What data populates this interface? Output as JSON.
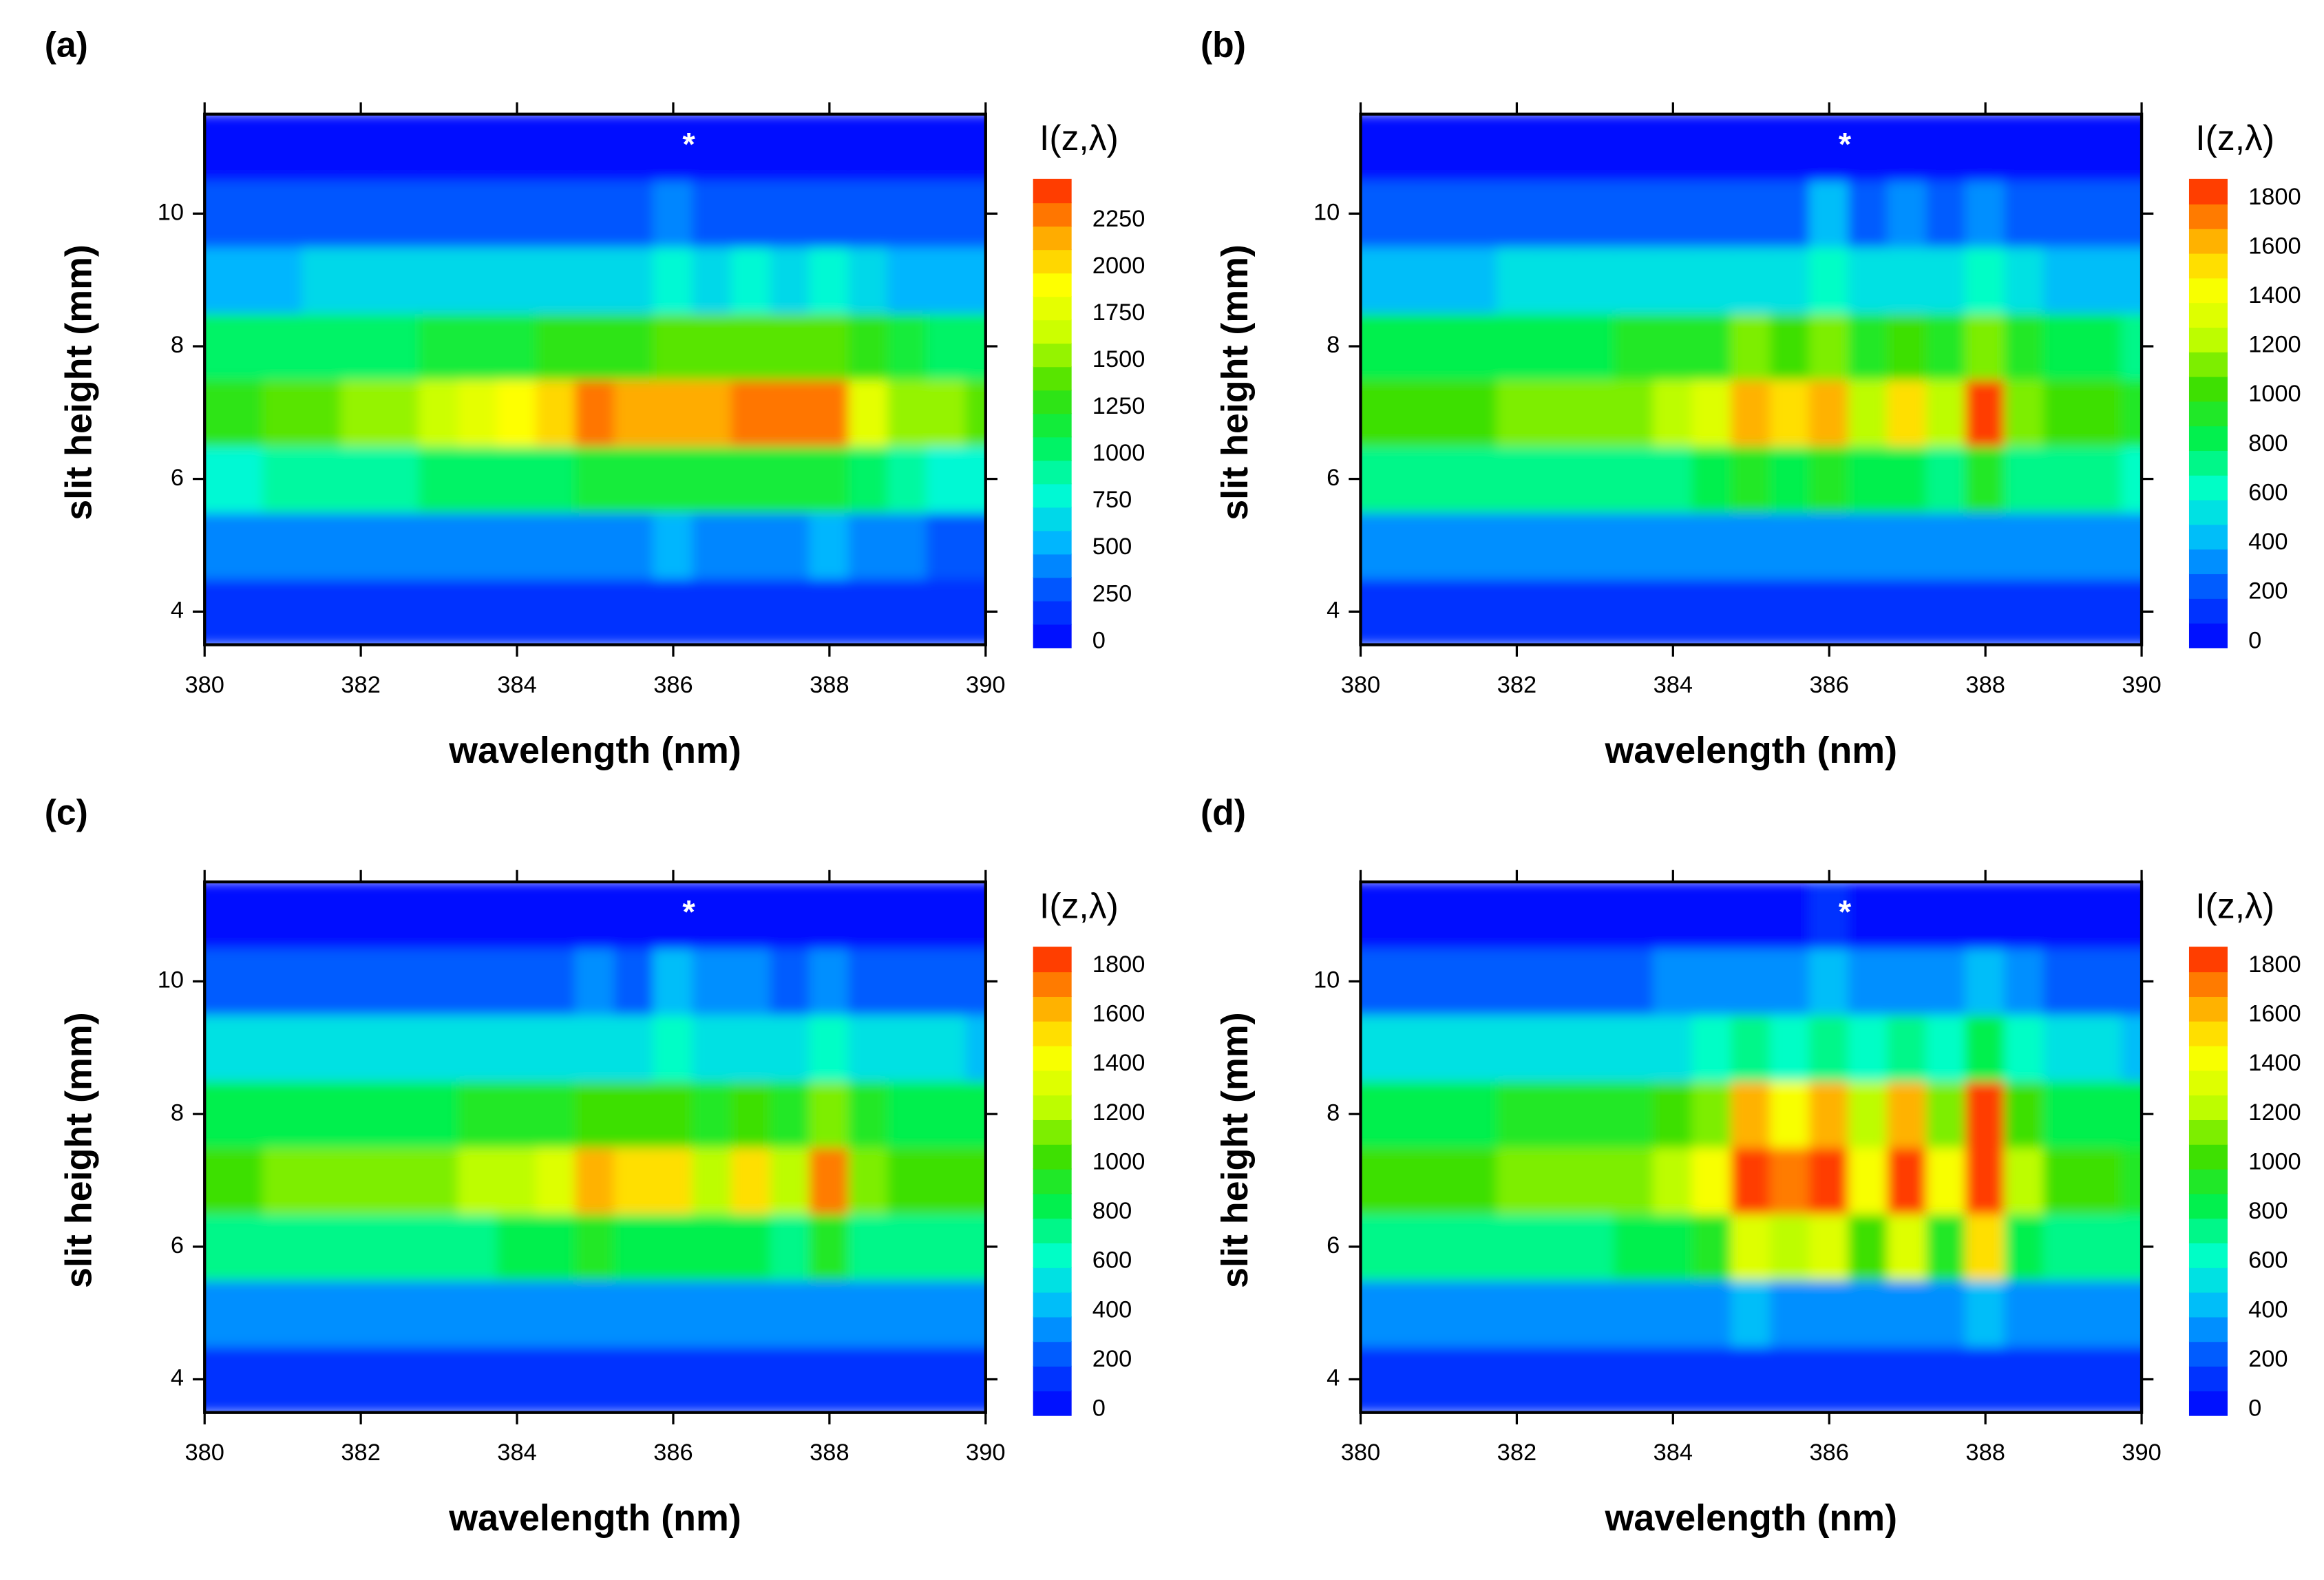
{
  "chart_data": [
    {
      "type": "contour",
      "label": "(a)",
      "xlabel": "wavelength (nm)",
      "ylabel": "slit height (mm)",
      "colorbar_title": "I(z,λ)",
      "annotation": {
        "text": "*",
        "x": 386.2,
        "y": 11.1
      },
      "xlim": [
        380,
        390
      ],
      "xticks": [
        380,
        382,
        384,
        386,
        388,
        390
      ],
      "ylim": [
        3.5,
        11.5
      ],
      "yticks": [
        4,
        6,
        8,
        10
      ],
      "zlim": [
        0,
        2500
      ],
      "levels": 20,
      "zticks": [
        0,
        250,
        500,
        750,
        1000,
        1250,
        1500,
        1750,
        2000,
        2250
      ],
      "colormap": [
        "#0000ff",
        "#0048ff",
        "#00b4ff",
        "#00ffd0",
        "#00f050",
        "#40e000",
        "#c8ff00",
        "#ffff00",
        "#ffa000",
        "#ff2000"
      ],
      "x": [
        380,
        380.5,
        381,
        381.5,
        382,
        382.5,
        383,
        383.5,
        384,
        384.5,
        385,
        385.5,
        386,
        386.5,
        387,
        387.5,
        388,
        388.5,
        389,
        389.5,
        390
      ],
      "y": [
        4,
        5,
        6,
        7,
        8,
        9,
        10,
        11
      ],
      "z": [
        [
          150,
          150,
          150,
          150,
          150,
          150,
          150,
          150,
          150,
          150,
          150,
          150,
          160,
          150,
          150,
          150,
          150,
          150,
          150,
          150,
          150
        ],
        [
          380,
          390,
          400,
          410,
          420,
          430,
          440,
          450,
          460,
          470,
          480,
          480,
          500,
          480,
          490,
          480,
          500,
          420,
          380,
          370,
          360
        ],
        [
          850,
          870,
          900,
          920,
          950,
          970,
          1000,
          1020,
          1050,
          1100,
          1150,
          1150,
          1150,
          1150,
          1200,
          1180,
          1200,
          1000,
          900,
          850,
          830
        ],
        [
          1300,
          1350,
          1400,
          1450,
          1500,
          1550,
          1650,
          1750,
          1900,
          2100,
          2250,
          2200,
          2200,
          2150,
          2300,
          2250,
          2350,
          1800,
          1600,
          1500,
          1450
        ],
        [
          1000,
          1020,
          1050,
          1070,
          1100,
          1120,
          1150,
          1180,
          1220,
          1280,
          1350,
          1350,
          1380,
          1380,
          1420,
          1400,
          1450,
          1250,
          1150,
          1100,
          1080
        ],
        [
          600,
          610,
          620,
          630,
          640,
          650,
          660,
          670,
          680,
          700,
          720,
          720,
          750,
          730,
          750,
          740,
          760,
          680,
          620,
          600,
          590
        ],
        [
          250,
          250,
          250,
          260,
          260,
          270,
          270,
          280,
          290,
          300,
          320,
          330,
          380,
          340,
          330,
          320,
          320,
          290,
          260,
          250,
          250
        ],
        [
          100,
          100,
          100,
          100,
          100,
          100,
          100,
          100,
          100,
          100,
          100,
          100,
          110,
          100,
          100,
          100,
          100,
          100,
          100,
          100,
          100
        ]
      ]
    },
    {
      "type": "contour",
      "label": "(b)",
      "xlabel": "wavelength (nm)",
      "ylabel": "slit height (mm)",
      "colorbar_title": "I(z,λ)",
      "annotation": {
        "text": "*",
        "x": 386.2,
        "y": 11.1
      },
      "xlim": [
        380,
        390
      ],
      "xticks": [
        380,
        382,
        384,
        386,
        388,
        390
      ],
      "ylim": [
        3.5,
        11.5
      ],
      "yticks": [
        4,
        6,
        8,
        10
      ],
      "zlim": [
        0,
        1900
      ],
      "levels": 19,
      "zticks": [
        0,
        200,
        400,
        600,
        800,
        1000,
        1200,
        1400,
        1600,
        1800
      ],
      "colormap": [
        "#0000ff",
        "#0048ff",
        "#00b4ff",
        "#00ffd0",
        "#00f050",
        "#40e000",
        "#c8ff00",
        "#ffff00",
        "#ffa000",
        "#ff2000"
      ],
      "x": [
        380,
        380.5,
        381,
        381.5,
        382,
        382.5,
        383,
        383.5,
        384,
        384.5,
        385,
        385.5,
        386,
        386.5,
        387,
        387.5,
        388,
        388.5,
        389,
        389.5,
        390
      ],
      "y": [
        4,
        5,
        6,
        7,
        8,
        9,
        10,
        11
      ],
      "z": [
        [
          120,
          120,
          120,
          120,
          120,
          120,
          120,
          120,
          120,
          120,
          120,
          120,
          110,
          120,
          120,
          120,
          120,
          120,
          120,
          120,
          120
        ],
        [
          330,
          330,
          340,
          340,
          340,
          350,
          350,
          350,
          350,
          360,
          380,
          370,
          360,
          350,
          370,
          340,
          380,
          330,
          320,
          320,
          320
        ],
        [
          700,
          710,
          720,
          730,
          740,
          750,
          760,
          770,
          780,
          800,
          900,
          880,
          900,
          800,
          880,
          780,
          950,
          760,
          720,
          700,
          690
        ],
        [
          1000,
          1020,
          1050,
          1080,
          1100,
          1120,
          1150,
          1180,
          1200,
          1300,
          1650,
          1550,
          1600,
          1250,
          1550,
          1200,
          1800,
          1150,
          1050,
          1000,
          980
        ],
        [
          800,
          810,
          820,
          830,
          850,
          860,
          880,
          900,
          920,
          950,
          1100,
          1050,
          1100,
          950,
          1050,
          900,
          1150,
          900,
          820,
          800,
          790
        ],
        [
          480,
          480,
          490,
          490,
          500,
          500,
          510,
          510,
          520,
          530,
          580,
          560,
          600,
          540,
          570,
          530,
          600,
          520,
          490,
          480,
          480
        ],
        [
          250,
          250,
          250,
          250,
          250,
          250,
          260,
          260,
          260,
          270,
          290,
          280,
          400,
          290,
          300,
          280,
          330,
          270,
          250,
          250,
          250
        ],
        [
          80,
          80,
          80,
          80,
          80,
          80,
          80,
          80,
          80,
          80,
          80,
          80,
          90,
          80,
          80,
          80,
          80,
          80,
          80,
          80,
          80
        ]
      ]
    },
    {
      "type": "contour",
      "label": "(c)",
      "xlabel": "wavelength (nm)",
      "ylabel": "slit height (mm)",
      "colorbar_title": "I(z,λ)",
      "annotation": {
        "text": "*",
        "x": 386.2,
        "y": 11.1
      },
      "xlim": [
        380,
        390
      ],
      "xticks": [
        380,
        382,
        384,
        386,
        388,
        390
      ],
      "ylim": [
        3.5,
        11.5
      ],
      "yticks": [
        4,
        6,
        8,
        10
      ],
      "zlim": [
        0,
        1900
      ],
      "levels": 19,
      "zticks": [
        0,
        200,
        400,
        600,
        800,
        1000,
        1200,
        1400,
        1600,
        1800
      ],
      "colormap": [
        "#0000ff",
        "#0048ff",
        "#00b4ff",
        "#00ffd0",
        "#00f050",
        "#40e000",
        "#c8ff00",
        "#ffff00",
        "#ffa000",
        "#ff2000"
      ],
      "x": [
        380,
        380.5,
        381,
        381.5,
        382,
        382.5,
        383,
        383.5,
        384,
        384.5,
        385,
        385.5,
        386,
        386.5,
        387,
        387.5,
        388,
        388.5,
        389,
        389.5,
        390
      ],
      "y": [
        4,
        5,
        6,
        7,
        8,
        9,
        10,
        11
      ],
      "z": [
        [
          120,
          120,
          120,
          120,
          120,
          120,
          120,
          120,
          120,
          120,
          120,
          120,
          100,
          120,
          120,
          120,
          120,
          120,
          120,
          120,
          120
        ],
        [
          340,
          340,
          340,
          350,
          350,
          350,
          350,
          360,
          360,
          370,
          380,
          370,
          360,
          350,
          370,
          340,
          370,
          330,
          330,
          330,
          330
        ],
        [
          720,
          730,
          740,
          750,
          760,
          770,
          780,
          790,
          800,
          820,
          900,
          880,
          880,
          800,
          870,
          780,
          920,
          760,
          730,
          720,
          710
        ],
        [
          1050,
          1070,
          1100,
          1120,
          1150,
          1170,
          1180,
          1200,
          1220,
          1300,
          1600,
          1550,
          1550,
          1250,
          1500,
          1200,
          1750,
          1150,
          1080,
          1050,
          1030
        ],
        [
          830,
          840,
          850,
          860,
          870,
          880,
          890,
          900,
          920,
          950,
          1080,
          1050,
          1080,
          950,
          1030,
          900,
          1120,
          900,
          850,
          830,
          820
        ],
        [
          500,
          500,
          500,
          510,
          510,
          520,
          520,
          530,
          530,
          540,
          580,
          560,
          620,
          540,
          570,
          530,
          620,
          520,
          500,
          500,
          490
        ],
        [
          260,
          260,
          260,
          260,
          260,
          260,
          260,
          270,
          270,
          280,
          300,
          290,
          420,
          300,
          310,
          290,
          350,
          280,
          260,
          260,
          260
        ],
        [
          80,
          80,
          80,
          80,
          80,
          80,
          80,
          80,
          80,
          80,
          80,
          80,
          90,
          80,
          80,
          80,
          80,
          80,
          80,
          80,
          80
        ]
      ]
    },
    {
      "type": "contour",
      "label": "(d)",
      "xlabel": "wavelength (nm)",
      "ylabel": "slit height (mm)",
      "colorbar_title": "I(z,λ)",
      "annotation": {
        "text": "*",
        "x": 386.2,
        "y": 11.1
      },
      "xlim": [
        380,
        390
      ],
      "xticks": [
        380,
        382,
        384,
        386,
        388,
        390
      ],
      "ylim": [
        3.5,
        11.5
      ],
      "yticks": [
        4,
        6,
        8,
        10
      ],
      "zlim": [
        0,
        1900
      ],
      "levels": 19,
      "zticks": [
        0,
        200,
        400,
        600,
        800,
        1000,
        1200,
        1400,
        1600,
        1800
      ],
      "colormap": [
        "#0000ff",
        "#0048ff",
        "#00b4ff",
        "#00ffd0",
        "#00f050",
        "#40e000",
        "#c8ff00",
        "#ffff00",
        "#ffa000",
        "#ff2000"
      ],
      "x": [
        380,
        380.5,
        381,
        381.5,
        382,
        382.5,
        383,
        383.5,
        384,
        384.5,
        385,
        385.5,
        386,
        386.5,
        387,
        387.5,
        388,
        388.5,
        389,
        389.5,
        390
      ],
      "y": [
        4,
        5,
        6,
        7,
        8,
        9,
        10,
        11
      ],
      "z": [
        [
          130,
          130,
          130,
          130,
          130,
          130,
          130,
          130,
          130,
          130,
          130,
          130,
          110,
          130,
          130,
          130,
          120,
          130,
          130,
          130,
          130
        ],
        [
          330,
          330,
          340,
          340,
          350,
          350,
          350,
          360,
          370,
          380,
          400,
          390,
          380,
          370,
          390,
          360,
          400,
          340,
          330,
          320,
          320
        ],
        [
          720,
          730,
          740,
          750,
          760,
          770,
          780,
          800,
          850,
          950,
          1300,
          1200,
          1300,
          1000,
          1300,
          950,
          1500,
          850,
          750,
          720,
          710
        ],
        [
          1000,
          1020,
          1050,
          1080,
          1100,
          1120,
          1150,
          1180,
          1250,
          1400,
          1850,
          1700,
          1850,
          1400,
          1850,
          1400,
          1900,
          1200,
          1050,
          1000,
          980
        ],
        [
          850,
          860,
          870,
          880,
          900,
          910,
          920,
          950,
          1000,
          1150,
          1600,
          1450,
          1600,
          1200,
          1600,
          1150,
          1800,
          1050,
          880,
          850,
          840
        ],
        [
          500,
          500,
          510,
          510,
          520,
          530,
          540,
          550,
          580,
          620,
          700,
          680,
          750,
          650,
          720,
          640,
          800,
          600,
          520,
          500,
          490
        ],
        [
          260,
          260,
          260,
          260,
          270,
          270,
          280,
          290,
          300,
          320,
          350,
          340,
          450,
          330,
          360,
          330,
          420,
          300,
          270,
          260,
          260
        ],
        [
          90,
          90,
          90,
          90,
          90,
          90,
          90,
          90,
          90,
          90,
          90,
          90,
          100,
          90,
          90,
          90,
          90,
          90,
          90,
          90,
          90
        ]
      ]
    }
  ]
}
